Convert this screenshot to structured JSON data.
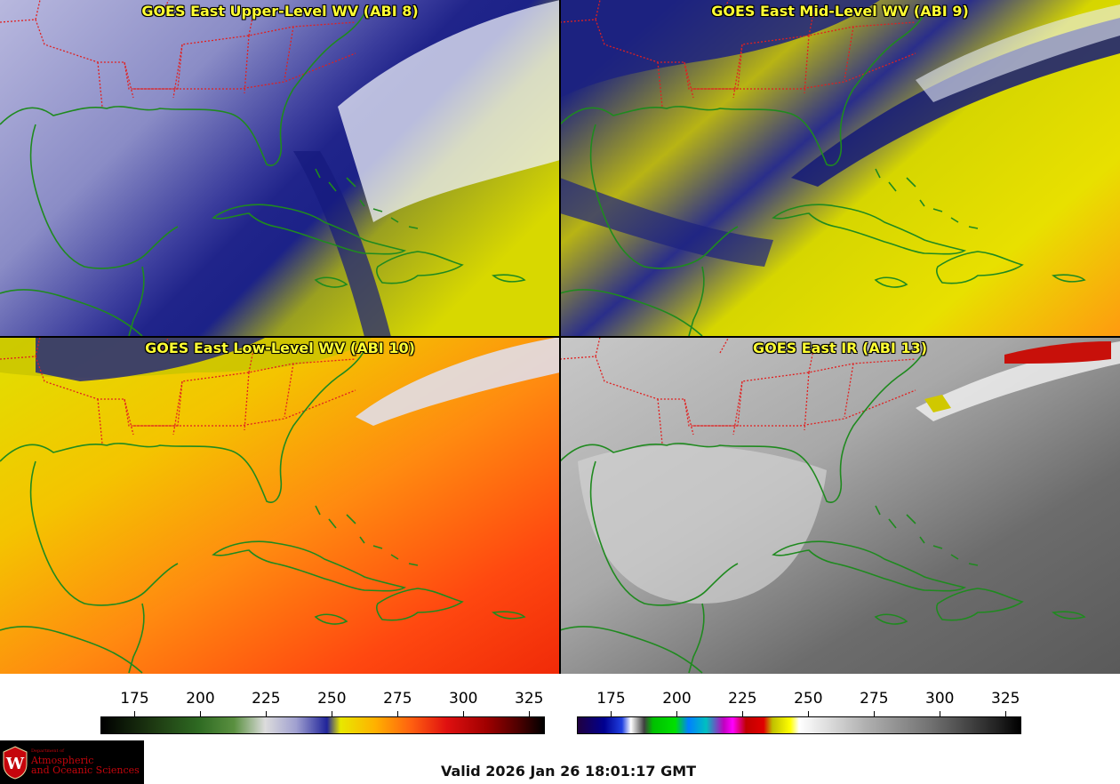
{
  "panels": [
    {
      "id": "upper",
      "title": "GOES East Upper-Level WV (ABI 8)"
    },
    {
      "id": "mid",
      "title": "GOES East Mid-Level WV (ABI 9)"
    },
    {
      "id": "low",
      "title": "GOES East Low-Level WV (ABI 10)"
    },
    {
      "id": "ir",
      "title": "GOES East IR (ABI 13)"
    }
  ],
  "colorbars": [
    {
      "id": "wv",
      "ticks": [
        "175",
        "200",
        "225",
        "250",
        "275",
        "300",
        "325"
      ],
      "range": [
        162,
        331
      ]
    },
    {
      "id": "ir",
      "ticks": [
        "175",
        "200",
        "225",
        "250",
        "275",
        "300",
        "325"
      ],
      "range": [
        162,
        331
      ]
    }
  ],
  "logo": {
    "department": "Department of",
    "line1": "Atmospheric",
    "line2": "and Oceanic Sciences",
    "seal_letter": "W"
  },
  "valid_time": "Valid 2026 Jan 26 18:01:17 GMT",
  "colors": {
    "title_text": "#ffff33",
    "coastline": "#1f8a1f",
    "state_border": "#e02020",
    "logo_red": "#c5050c"
  }
}
